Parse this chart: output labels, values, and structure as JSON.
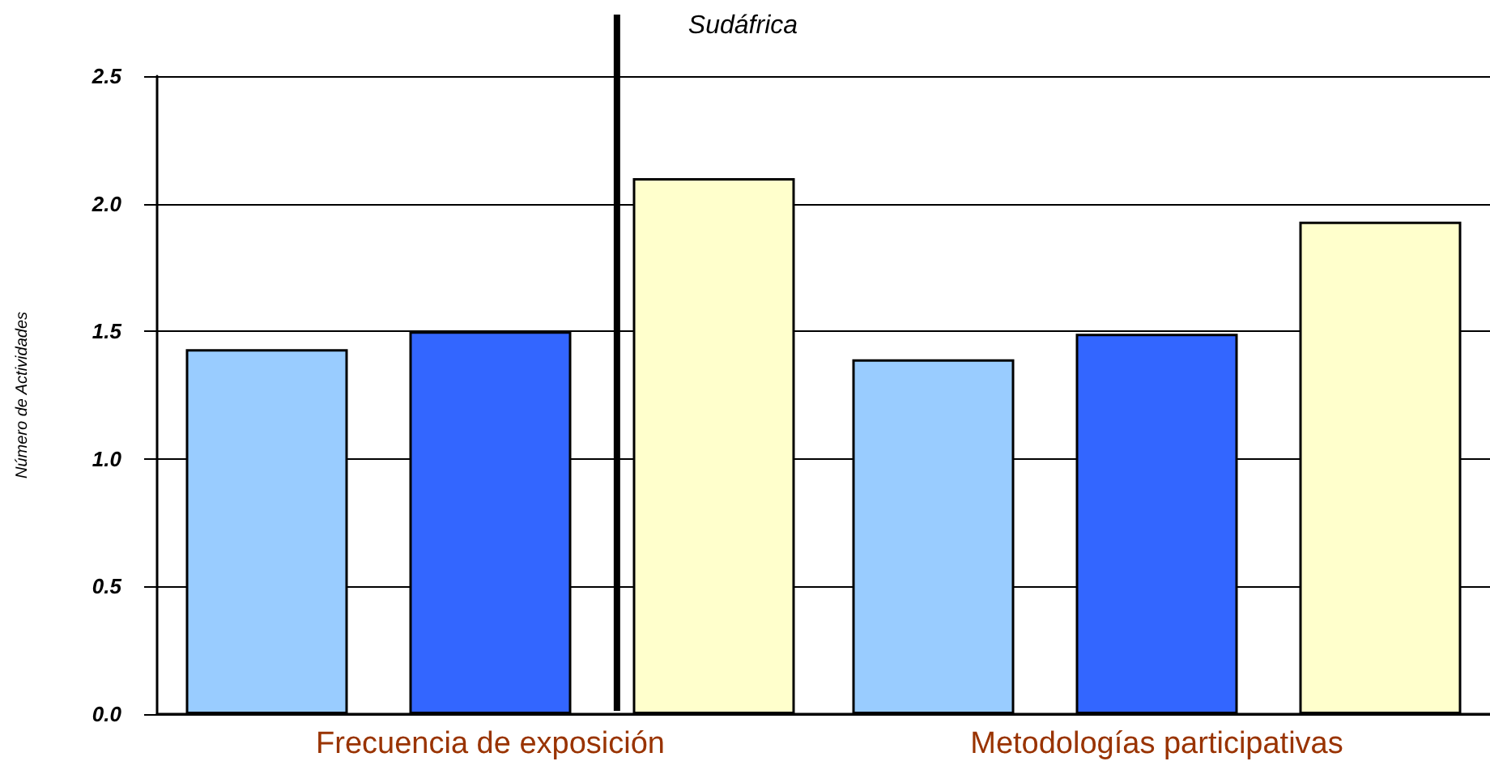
{
  "chart_data": {
    "type": "bar",
    "ylabel": "Número de Actividades",
    "categories": [
      "Frecuencia de exposición",
      "Metodologías participativas"
    ],
    "series": [
      {
        "color": "#99ccff",
        "values": [
          1.43,
          1.39
        ]
      },
      {
        "color": "#3366ff",
        "values": [
          1.5,
          1.49
        ]
      },
      {
        "color": "#ffffcc",
        "values": [
          2.1,
          1.93
        ]
      }
    ],
    "ylim": [
      0,
      2.5
    ],
    "yticks": [
      {
        "value": 0,
        "label": "0.0"
      },
      {
        "value": 0.5,
        "label": "0.5"
      },
      {
        "value": 1,
        "label": "1.0"
      },
      {
        "value": 1.5,
        "label": "1.5"
      },
      {
        "value": 2,
        "label": "2.0"
      },
      {
        "value": 2.5,
        "label": "2.5"
      }
    ],
    "grid": "y",
    "ref_lines": [
      {
        "axis": "x",
        "value": "Frecuencia de exposición",
        "label": "Sudáfrica",
        "color": "#000000"
      }
    ]
  }
}
